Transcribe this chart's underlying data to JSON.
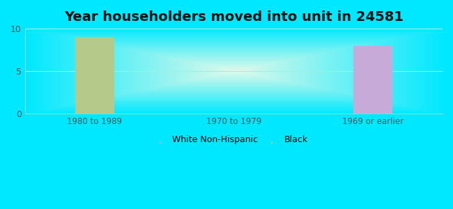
{
  "title": "Year householders moved into unit in 24581",
  "categories": [
    "1980 to 1989",
    "1970 to 1979",
    "1969 or earlier"
  ],
  "white_non_hispanic": [
    0,
    0,
    8
  ],
  "black": [
    9,
    0,
    0
  ],
  "white_color": "#c8aad8",
  "black_color": "#b5c98a",
  "ylim": [
    0,
    10
  ],
  "yticks": [
    0,
    5,
    10
  ],
  "background_outer": "#00e8ff",
  "title_fontsize": 14,
  "bar_width": 0.28,
  "legend_white_label": "White Non-Hispanic",
  "legend_black_label": "Black"
}
